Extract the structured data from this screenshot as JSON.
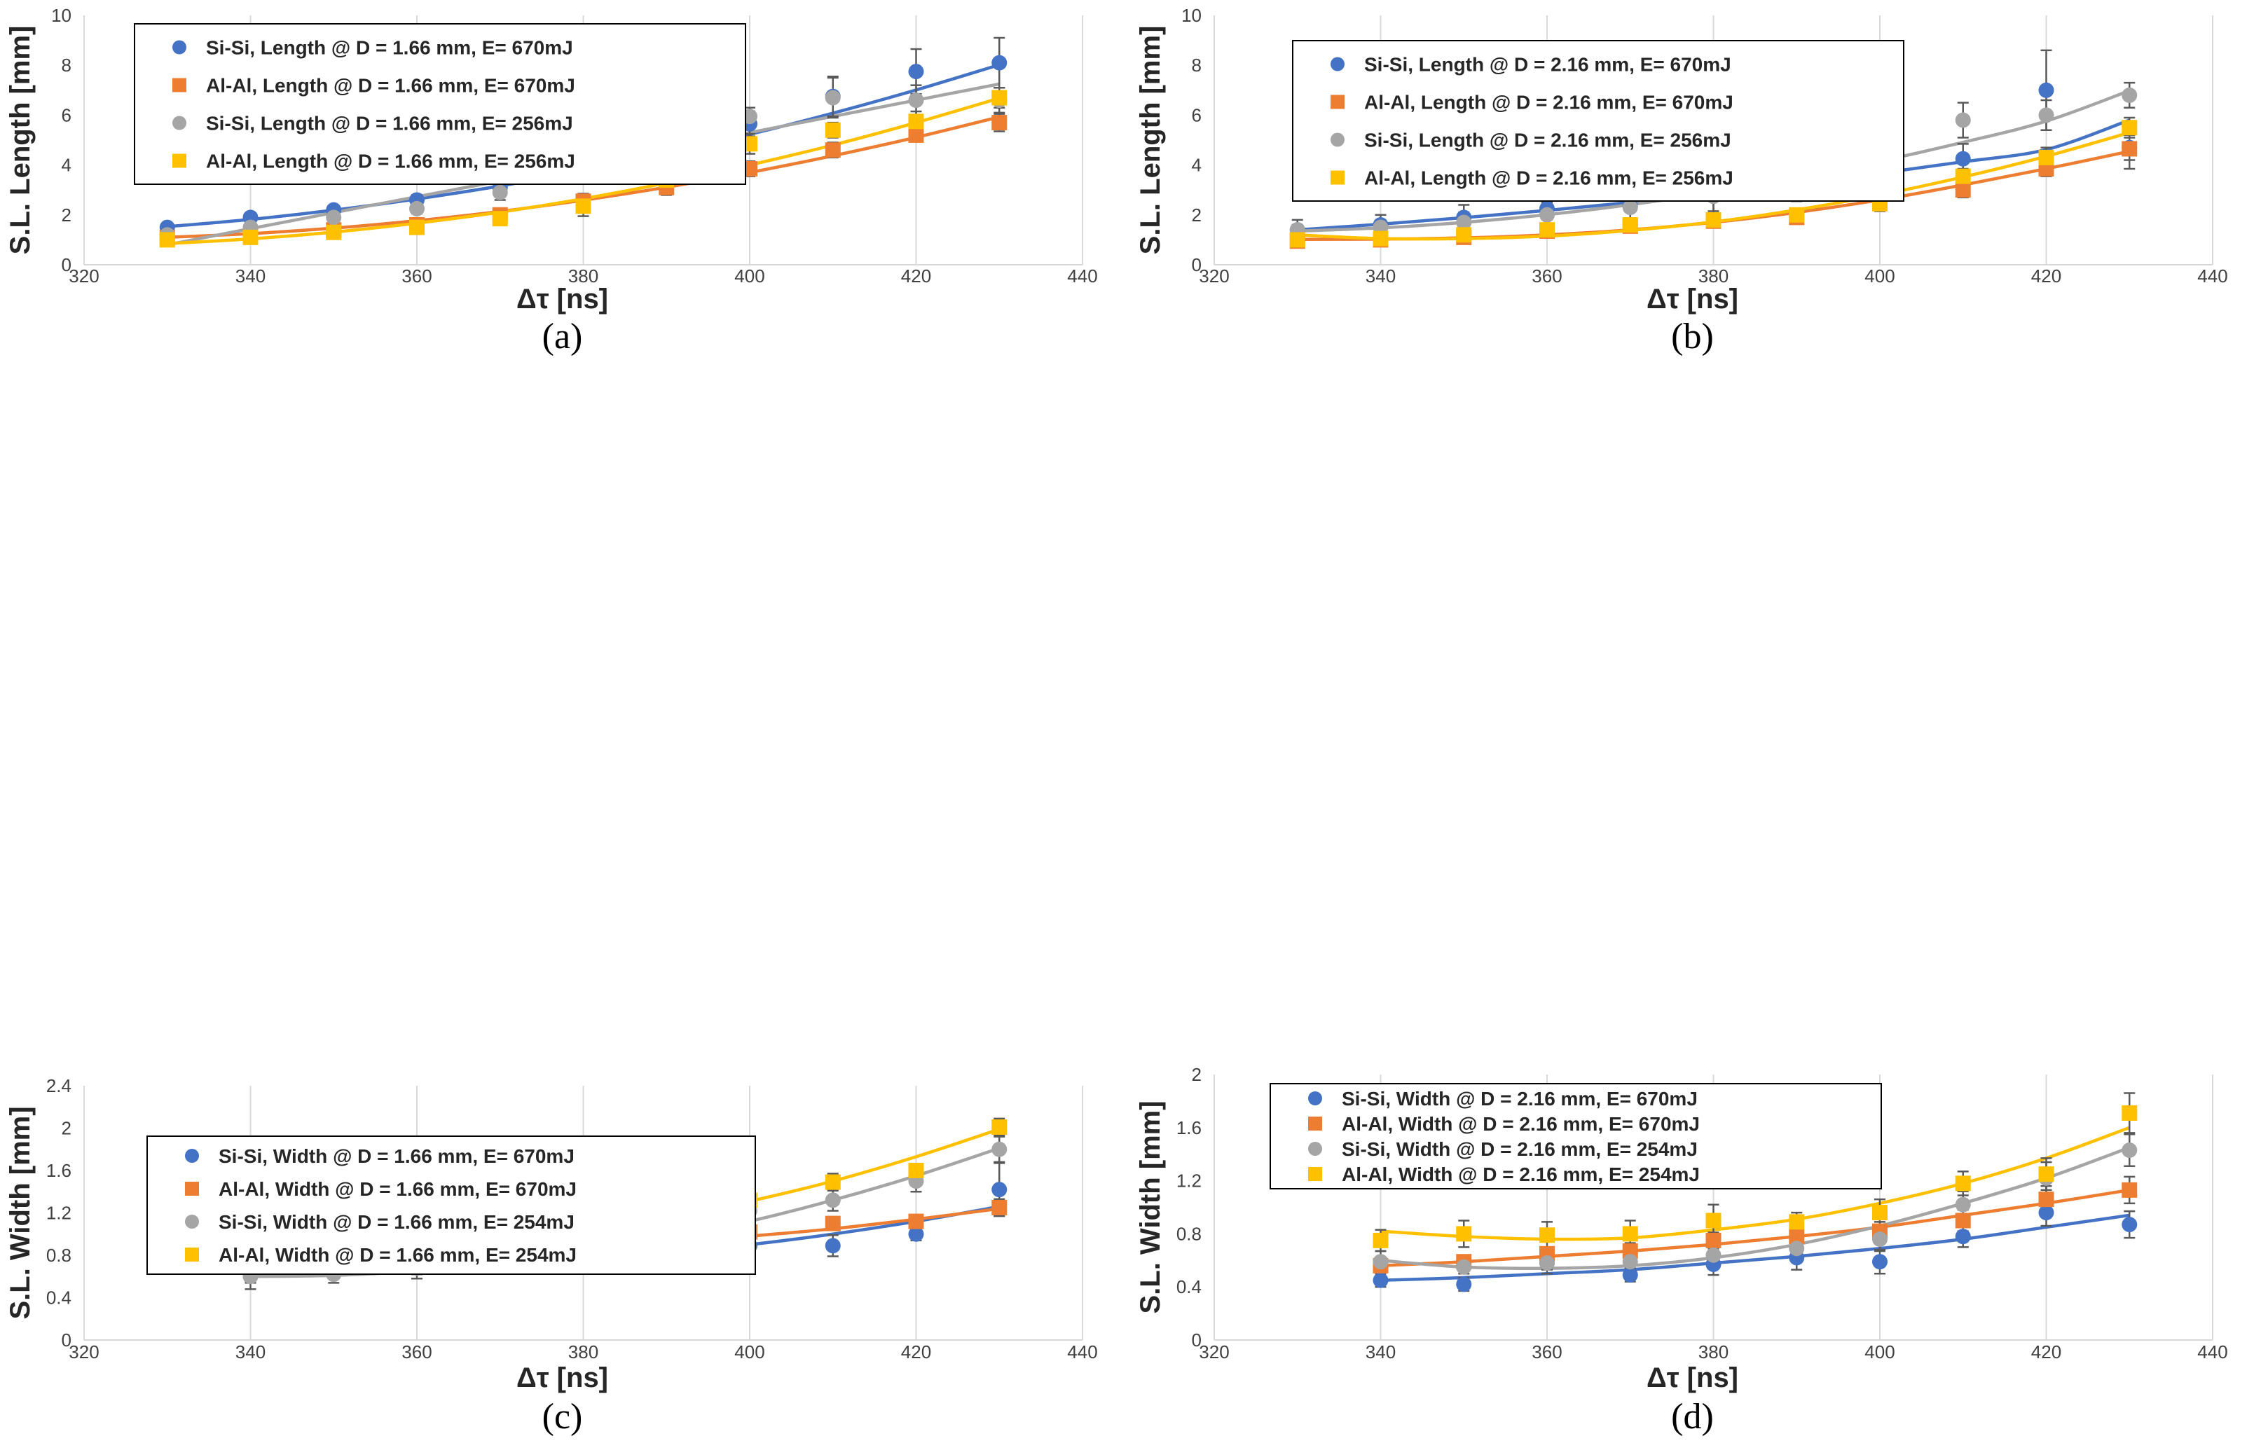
{
  "chart_data": [
    {
      "type": "scatter",
      "caption": "(a)",
      "xlabel": "Δτ [ns]",
      "ylabel": "S.L. Length [mm]",
      "xlim": [
        320,
        440
      ],
      "ylim": [
        0,
        10
      ],
      "xticks": [
        "320",
        "340",
        "360",
        "380",
        "400",
        "420",
        "440"
      ],
      "yticks": [
        "0",
        "2",
        "4",
        "6",
        "8",
        "10"
      ],
      "grid": "vertical",
      "legend_position": "top-left",
      "series": [
        {
          "name": "Si-Si, Length @ D = 1.66 mm, E= 670mJ",
          "color": "#4472C4",
          "marker": "circle",
          "x": [
            330,
            340,
            350,
            360,
            370,
            380,
            390,
            400,
            410,
            420,
            430
          ],
          "y": [
            1.5,
            1.9,
            2.2,
            2.6,
            3.1,
            3.9,
            3.85,
            5.65,
            6.75,
            7.75,
            8.1
          ],
          "err": [
            0.1,
            0.1,
            0.1,
            0.2,
            0.3,
            0.5,
            0.3,
            0.5,
            0.8,
            0.9,
            1.0
          ],
          "fit": [
            1.53,
            1.82,
            2.19,
            2.64,
            3.16,
            3.77,
            4.46,
            5.23,
            6.08,
            7.01,
            8.02
          ]
        },
        {
          "name": "Al-Al, Length @ D = 1.66 mm, E= 670mJ",
          "color": "#ED7D31",
          "marker": "square",
          "x": [
            330,
            340,
            350,
            360,
            370,
            380,
            390,
            400,
            410,
            420,
            430
          ],
          "y": [
            1.1,
            1.2,
            1.4,
            1.6,
            2.0,
            2.55,
            3.1,
            3.85,
            4.6,
            5.2,
            5.7
          ],
          "err": [
            0.1,
            0.1,
            0.1,
            0.2,
            0.2,
            0.3,
            0.3,
            0.3,
            0.3,
            0.2,
            0.35
          ],
          "fit": [
            1.1,
            1.25,
            1.47,
            1.77,
            2.14,
            2.59,
            3.11,
            3.7,
            4.37,
            5.11,
            5.93
          ]
        },
        {
          "name": "Si-Si, Length @ D = 1.66 mm, E= 256mJ",
          "color": "#A5A5A5",
          "marker": "circle",
          "x": [
            330,
            340,
            350,
            360,
            370,
            380,
            390,
            400,
            410,
            420,
            430
          ],
          "y": [
            1.2,
            1.5,
            1.9,
            2.25,
            2.9,
            3.9,
            4.95,
            5.95,
            6.7,
            6.6,
            6.6
          ],
          "err": [
            0.1,
            0.1,
            0.15,
            0.2,
            0.3,
            0.3,
            0.2,
            0.35,
            0.8,
            0.6,
            0.5
          ],
          "fit": [
            0.8,
            1.45,
            2.09,
            2.73,
            3.36,
            4.0,
            4.62,
            5.3,
            5.95,
            6.6,
            7.25
          ]
        },
        {
          "name": "Al-Al, Length @ D = 1.66 mm, E= 256mJ",
          "color": "#FFC000",
          "marker": "square",
          "x": [
            330,
            340,
            350,
            360,
            370,
            380,
            390,
            400,
            410,
            420,
            430
          ],
          "y": [
            1.0,
            1.1,
            1.3,
            1.5,
            1.85,
            2.35,
            3.4,
            4.85,
            5.4,
            5.75,
            6.7
          ],
          "err": [
            0.1,
            0.1,
            0.1,
            0.1,
            0.2,
            0.4,
            0.2,
            0.4,
            0.3,
            0.4,
            0.4
          ],
          "fit": [
            0.85,
            1.04,
            1.31,
            1.67,
            2.11,
            2.65,
            3.28,
            4.0,
            4.8,
            5.7,
            6.68
          ]
        }
      ]
    },
    {
      "type": "scatter",
      "caption": "(b)",
      "xlabel": "Δτ [ns]",
      "ylabel": "S.L. Length [mm]",
      "xlim": [
        320,
        440
      ],
      "ylim": [
        0,
        10
      ],
      "xticks": [
        "320",
        "340",
        "360",
        "380",
        "400",
        "420",
        "440"
      ],
      "yticks": [
        "0",
        "2",
        "4",
        "6",
        "8",
        "10"
      ],
      "grid": "vertical",
      "legend_position": "top-left",
      "series": [
        {
          "name": "Si-Si, Length @ D = 2.16 mm, E= 670mJ",
          "color": "#4472C4",
          "marker": "circle",
          "x": [
            330,
            340,
            350,
            360,
            370,
            380,
            390,
            400,
            410,
            420,
            430
          ],
          "y": [
            1.4,
            1.6,
            1.9,
            2.25,
            2.35,
            2.75,
            3.35,
            3.4,
            4.25,
            7.0,
            4.7
          ],
          "err": [
            0.4,
            0.4,
            0.5,
            0.6,
            0.5,
            0.8,
            0.8,
            0.4,
            0.6,
            1.6,
            0.5
          ],
          "fit": [
            1.4,
            1.63,
            1.89,
            2.18,
            2.5,
            2.86,
            3.25,
            3.67,
            4.13,
            4.62,
            5.8
          ]
        },
        {
          "name": "Al-Al, Length @ D = 2.16 mm, E= 670mJ",
          "color": "#ED7D31",
          "marker": "square",
          "x": [
            330,
            340,
            350,
            360,
            370,
            380,
            390,
            400,
            410,
            420,
            430
          ],
          "y": [
            0.95,
            1.0,
            1.1,
            1.35,
            1.55,
            1.75,
            1.9,
            2.6,
            3.0,
            3.85,
            4.65
          ],
          "err": [
            0.1,
            0.1,
            0.1,
            0.2,
            0.2,
            0.2,
            0.2,
            0.3,
            0.3,
            0.3,
            0.8
          ],
          "fit": [
            1.02,
            1.03,
            1.08,
            1.2,
            1.4,
            1.7,
            2.1,
            2.6,
            3.2,
            3.85,
            4.55
          ]
        },
        {
          "name": "Si-Si, Length @ D = 2.16 mm, E= 256mJ",
          "color": "#A5A5A5",
          "marker": "circle",
          "x": [
            330,
            340,
            350,
            360,
            370,
            380,
            390,
            400,
            410,
            420,
            430
          ],
          "y": [
            1.4,
            1.5,
            1.7,
            2.0,
            2.3,
            2.75,
            3.35,
            4.2,
            5.8,
            6.0,
            6.8
          ],
          "err": [
            0.2,
            0.3,
            0.4,
            0.5,
            0.6,
            0.6,
            0.6,
            0.3,
            0.7,
            0.6,
            0.5
          ],
          "fit": [
            1.35,
            1.48,
            1.7,
            2.01,
            2.41,
            2.9,
            3.48,
            4.15,
            4.91,
            5.76,
            6.98
          ]
        },
        {
          "name": "Al-Al, Length @ D = 2.16 mm, E= 256mJ",
          "color": "#FFC000",
          "marker": "square",
          "x": [
            330,
            340,
            350,
            360,
            370,
            380,
            390,
            400,
            410,
            420,
            430
          ],
          "y": [
            1.0,
            1.05,
            1.2,
            1.4,
            1.6,
            1.8,
            2.0,
            2.45,
            3.55,
            4.3,
            5.5
          ],
          "err": [
            0.1,
            0.1,
            0.1,
            0.15,
            0.2,
            0.2,
            0.2,
            0.3,
            0.3,
            0.4,
            0.4
          ],
          "fit": [
            1.2,
            1.05,
            1.05,
            1.15,
            1.38,
            1.72,
            2.2,
            2.8,
            3.52,
            4.35,
            5.3
          ]
        }
      ]
    },
    {
      "type": "scatter",
      "caption": "(c)",
      "xlabel": "Δτ [ns]",
      "ylabel": "S.L. Width [mm]",
      "xlim": [
        320,
        440
      ],
      "ylim": [
        0,
        2.4
      ],
      "xticks": [
        "320",
        "340",
        "360",
        "380",
        "400",
        "420",
        "440"
      ],
      "yticks": [
        "0",
        "0.4",
        "0.8",
        "1.2",
        "1.6",
        "2",
        "2.4"
      ],
      "grid": "vertical",
      "legend_position": "top-left",
      "series": [
        {
          "name": "Si-Si, Width @ D = 1.66 mm, E= 670mJ",
          "color": "#4472C4",
          "marker": "circle",
          "x": [
            340,
            350,
            360,
            370,
            380,
            390,
            400,
            410,
            420,
            430
          ],
          "y": [
            0.62,
            0.65,
            0.68,
            0.72,
            0.92,
            0.76,
            0.89,
            0.89,
            1.0,
            1.42
          ],
          "err": [
            0.08,
            0.06,
            0.06,
            0.07,
            0.08,
            0.12,
            0.15,
            0.1,
            0.06,
            0.25
          ],
          "fit": [
            0.65,
            0.66,
            0.68,
            0.71,
            0.76,
            0.82,
            0.9,
            1.0,
            1.12,
            1.26
          ]
        },
        {
          "name": "Al-Al, Width @ D = 1.66 mm, E= 670mJ",
          "color": "#ED7D31",
          "marker": "square",
          "x": [
            340,
            350,
            360,
            370,
            380,
            390,
            400,
            410,
            420,
            430
          ],
          "y": [
            0.7,
            0.72,
            0.76,
            0.8,
            0.86,
            0.94,
            1.02,
            1.1,
            1.12,
            1.25
          ],
          "err": [
            0.05,
            0.05,
            0.05,
            0.05,
            0.05,
            0.05,
            0.05,
            0.05,
            0.05,
            0.08
          ],
          "fit": [
            0.69,
            0.73,
            0.77,
            0.81,
            0.86,
            0.92,
            0.98,
            1.05,
            1.14,
            1.24
          ]
        },
        {
          "name": "Si-Si, Width @ D = 1.66 mm, E= 254mJ",
          "color": "#A5A5A5",
          "marker": "circle",
          "x": [
            340,
            350,
            360,
            370,
            380,
            390,
            400,
            410,
            420,
            430
          ],
          "y": [
            0.6,
            0.62,
            0.68,
            0.75,
            0.82,
            0.95,
            1.22,
            1.32,
            1.5,
            1.8
          ],
          "err": [
            0.12,
            0.08,
            0.1,
            0.1,
            0.15,
            0.1,
            0.15,
            0.1,
            0.1,
            0.12
          ],
          "fit": [
            0.6,
            0.61,
            0.65,
            0.72,
            0.82,
            0.95,
            1.12,
            1.32,
            1.55,
            1.81
          ]
        },
        {
          "name": "Al-Al, Width @ D = 1.66 mm, E= 254mJ",
          "color": "#FFC000",
          "marker": "square",
          "x": [
            340,
            350,
            360,
            370,
            380,
            390,
            400,
            410,
            420,
            430
          ],
          "y": [
            0.86,
            0.8,
            0.82,
            0.93,
            1.03,
            1.12,
            1.32,
            1.49,
            1.6,
            2.01
          ],
          "err": [
            0.12,
            0.12,
            0.1,
            0.12,
            0.12,
            0.05,
            0.1,
            0.08,
            0.05,
            0.08
          ],
          "fit": [
            0.84,
            0.83,
            0.86,
            0.92,
            1.02,
            1.15,
            1.31,
            1.5,
            1.73,
            1.99
          ]
        }
      ]
    },
    {
      "type": "scatter",
      "caption": "(d)",
      "xlabel": "Δτ [ns]",
      "ylabel": "S.L. Width [mm]",
      "xlim": [
        320,
        440
      ],
      "ylim": [
        0,
        2
      ],
      "xticks": [
        "320",
        "340",
        "360",
        "380",
        "400",
        "420",
        "440"
      ],
      "yticks": [
        "0",
        "0.4",
        "0.8",
        "1.2",
        "1.6",
        "2"
      ],
      "grid": "vertical",
      "legend_position": "top-left",
      "series": [
        {
          "name": "Si-Si, Width @ D = 2.16 mm, E= 670mJ",
          "color": "#4472C4",
          "marker": "circle",
          "x": [
            340,
            350,
            360,
            370,
            380,
            390,
            400,
            410,
            420,
            430
          ],
          "y": [
            0.45,
            0.42,
            0.58,
            0.49,
            0.57,
            0.62,
            0.59,
            0.78,
            0.96,
            0.87
          ],
          "err": [
            0.05,
            0.05,
            0.08,
            0.05,
            0.08,
            0.09,
            0.09,
            0.08,
            0.1,
            0.1
          ],
          "fit": [
            0.45,
            0.47,
            0.5,
            0.53,
            0.58,
            0.63,
            0.69,
            0.76,
            0.85,
            0.94
          ]
        },
        {
          "name": "Al-Al, Width @ D = 2.16 mm, E= 670mJ",
          "color": "#ED7D31",
          "marker": "square",
          "x": [
            340,
            350,
            360,
            370,
            380,
            390,
            400,
            410,
            420,
            430
          ],
          "y": [
            0.56,
            0.59,
            0.65,
            0.67,
            0.75,
            0.78,
            0.82,
            0.9,
            1.06,
            1.13
          ],
          "err": [
            0.05,
            0.05,
            0.05,
            0.06,
            0.06,
            0.06,
            0.07,
            0.08,
            0.1,
            0.1
          ],
          "fit": [
            0.56,
            0.59,
            0.63,
            0.67,
            0.72,
            0.78,
            0.85,
            0.94,
            1.03,
            1.13
          ]
        },
        {
          "name": "Si-Si, Width @ D = 2.16 mm, E= 254mJ",
          "color": "#A5A5A5",
          "marker": "circle",
          "x": [
            340,
            350,
            360,
            370,
            380,
            390,
            400,
            410,
            420,
            430
          ],
          "y": [
            0.59,
            0.55,
            0.58,
            0.59,
            0.64,
            0.69,
            0.76,
            1.02,
            1.22,
            1.43
          ],
          "err": [
            0.08,
            0.05,
            0.05,
            0.06,
            0.1,
            0.1,
            0.09,
            0.1,
            0.12,
            0.12
          ],
          "fit": [
            0.6,
            0.55,
            0.54,
            0.56,
            0.62,
            0.72,
            0.86,
            1.03,
            1.22,
            1.45
          ]
        },
        {
          "name": "Al-Al, Width @ D = 2.16 mm, E= 254mJ",
          "color": "#FFC000",
          "marker": "square",
          "x": [
            340,
            350,
            360,
            370,
            380,
            390,
            400,
            410,
            420,
            430
          ],
          "y": [
            0.75,
            0.8,
            0.79,
            0.8,
            0.9,
            0.89,
            0.96,
            1.18,
            1.25,
            1.71
          ],
          "err": [
            0.08,
            0.1,
            0.1,
            0.1,
            0.12,
            0.07,
            0.1,
            0.09,
            0.12,
            0.15
          ],
          "fit": [
            0.82,
            0.78,
            0.76,
            0.77,
            0.83,
            0.91,
            1.03,
            1.18,
            1.37,
            1.6
          ]
        }
      ]
    }
  ]
}
